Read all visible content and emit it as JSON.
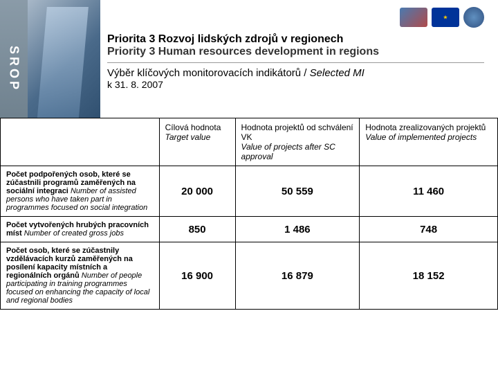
{
  "brand": "SROP",
  "header": {
    "title_cz": "Priorita 3 Rozvoj lidských zdrojů v regionech",
    "title_en": "Priority 3 Human resources development in regions",
    "subtitle_cz": "Výběr klíčových monitorovacích indikátorů",
    "subtitle_en": "Selected MI",
    "date": "k 31. 8. 2007"
  },
  "table": {
    "headers": {
      "col1_cz": "Cílová hodnota",
      "col1_en": "Target value",
      "col2_cz": "Hodnota projektů od schválení VK",
      "col2_en": "Value of projects after SC approval",
      "col3_cz": "Hodnota zrealizovaných projektů",
      "col3_en": "Value of implemented projects"
    },
    "rows": [
      {
        "label_cz": "Počet podpořených osob, které se zúčastnili programů zaměřených na sociální integraci",
        "label_en": "Number of assisted persons who have taken part in programmes focused on social integration",
        "v1": "20 000",
        "v2": "50 559",
        "v3": "11 460"
      },
      {
        "label_cz": "Počet vytvořených hrubých pracovních míst",
        "label_en": "Number of created gross jobs",
        "v1": "850",
        "v2": "1 486",
        "v3": "748"
      },
      {
        "label_cz": "Počet osob, které se zúčastnily vzdělávacích kurzů zaměřených na posílení kapacity místních a regionálních orgánů",
        "label_en": "Number of people participating in training programmes focused on enhancing the capacity of local and regional bodies",
        "v1": "16 900",
        "v2": "16 879",
        "v3": "18 152"
      }
    ]
  },
  "colors": {
    "border": "#000000",
    "text": "#000000",
    "bg": "#ffffff"
  }
}
